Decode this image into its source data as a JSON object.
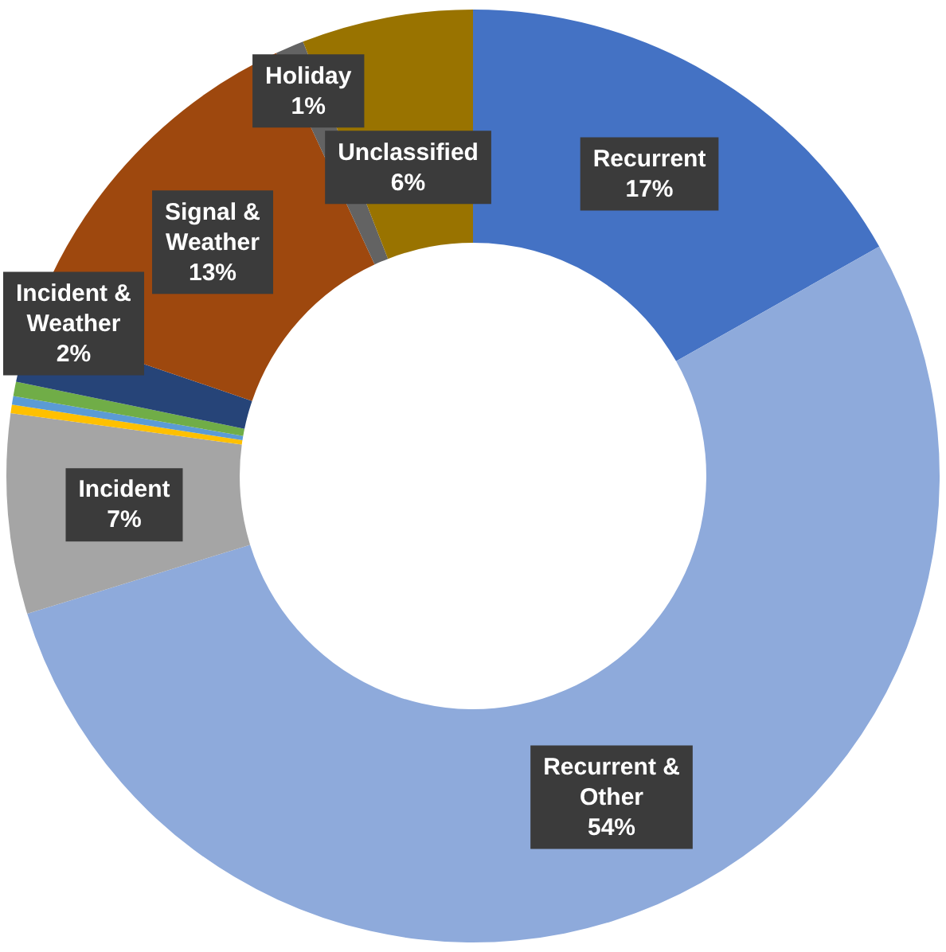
{
  "chart_data": {
    "type": "donut",
    "categories": [
      "Recurrent",
      "Recurrent & Other",
      "Incident",
      null,
      null,
      null,
      "Incident & Weather",
      "Signal & Weather",
      "Holiday",
      "Unclassified"
    ],
    "values": [
      17,
      54,
      7,
      0.3,
      0.3,
      0.5,
      2,
      13,
      1,
      6
    ],
    "value_labels": [
      "17%",
      "54%",
      "7%",
      null,
      null,
      null,
      "2%",
      "13%",
      "1%",
      "6%"
    ],
    "colors": [
      "#4472c4",
      "#8eaadb",
      "#a5a5a5",
      "#ffc000",
      "#5b9bd5",
      "#70ad47",
      "#264478",
      "#9e480e",
      "#636363",
      "#997300"
    ],
    "legend": false
  }
}
